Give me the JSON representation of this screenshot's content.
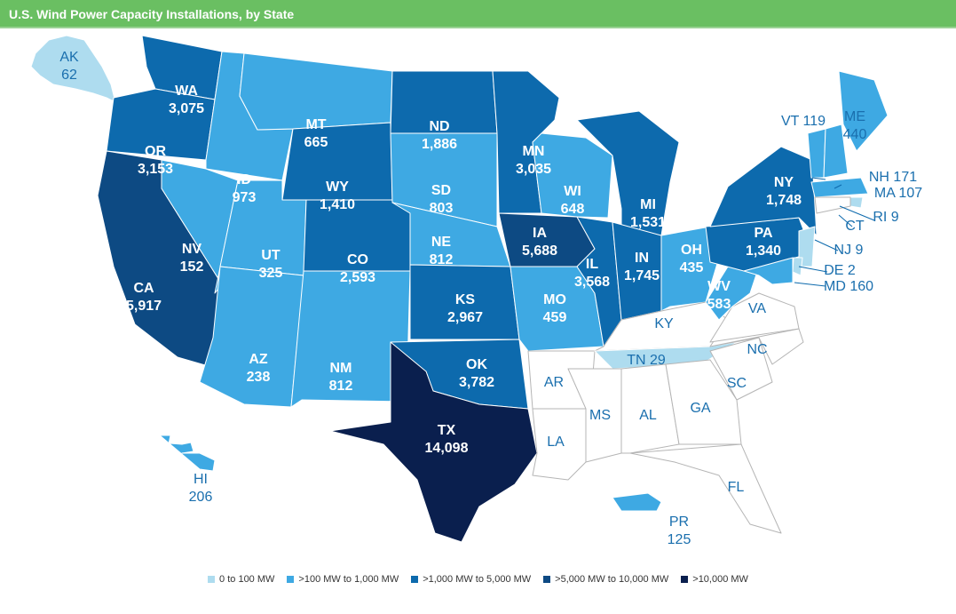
{
  "header": {
    "title": "U.S. Wind Power Capacity Installations, by State"
  },
  "colors": {
    "tier0": "#aedcef",
    "tier1": "#3ea9e3",
    "tier2": "#0d6aad",
    "tier3": "#0d4a83",
    "tier4": "#0a1f4e",
    "none": "#ffffff",
    "header": "#6abf62"
  },
  "legend": [
    {
      "label": "0 to 100 MW",
      "tier": "tier0"
    },
    {
      "label": ">100 MW to 1,000 MW",
      "tier": "tier1"
    },
    {
      "label": ">1,000 MW to 5,000 MW",
      "tier": "tier2"
    },
    {
      "label": ">5,000 MW to 10,000 MW",
      "tier": "tier3"
    },
    {
      "label": ">10,000 MW",
      "tier": "tier4"
    }
  ],
  "states": [
    {
      "code": "AK",
      "value": "62",
      "tier": "tier0"
    },
    {
      "code": "WA",
      "value": "3,075",
      "tier": "tier2"
    },
    {
      "code": "OR",
      "value": "3,153",
      "tier": "tier2"
    },
    {
      "code": "CA",
      "value": "5,917",
      "tier": "tier3"
    },
    {
      "code": "ID",
      "value": "973",
      "tier": "tier1"
    },
    {
      "code": "NV",
      "value": "152",
      "tier": "tier1"
    },
    {
      "code": "MT",
      "value": "665",
      "tier": "tier1"
    },
    {
      "code": "WY",
      "value": "1,410",
      "tier": "tier2"
    },
    {
      "code": "UT",
      "value": "325",
      "tier": "tier1"
    },
    {
      "code": "AZ",
      "value": "238",
      "tier": "tier1"
    },
    {
      "code": "CO",
      "value": "2,593",
      "tier": "tier2"
    },
    {
      "code": "NM",
      "value": "812",
      "tier": "tier1"
    },
    {
      "code": "ND",
      "value": "1,886",
      "tier": "tier2"
    },
    {
      "code": "SD",
      "value": "803",
      "tier": "tier1"
    },
    {
      "code": "NE",
      "value": "812",
      "tier": "tier1"
    },
    {
      "code": "KS",
      "value": "2,967",
      "tier": "tier2"
    },
    {
      "code": "OK",
      "value": "3,782",
      "tier": "tier2"
    },
    {
      "code": "TX",
      "value": "14,098",
      "tier": "tier4"
    },
    {
      "code": "MN",
      "value": "3,035",
      "tier": "tier2"
    },
    {
      "code": "IA",
      "value": "5,688",
      "tier": "tier3"
    },
    {
      "code": "MO",
      "value": "459",
      "tier": "tier1"
    },
    {
      "code": "AR",
      "value": "",
      "tier": "none"
    },
    {
      "code": "LA",
      "value": "",
      "tier": "none"
    },
    {
      "code": "WI",
      "value": "648",
      "tier": "tier1"
    },
    {
      "code": "IL",
      "value": "3,568",
      "tier": "tier2"
    },
    {
      "code": "MI",
      "value": "1,531",
      "tier": "tier2"
    },
    {
      "code": "IN",
      "value": "1,745",
      "tier": "tier2"
    },
    {
      "code": "OH",
      "value": "435",
      "tier": "tier1"
    },
    {
      "code": "KY",
      "value": "",
      "tier": "none"
    },
    {
      "code": "TN",
      "value": "29",
      "tier": "tier0"
    },
    {
      "code": "MS",
      "value": "",
      "tier": "none"
    },
    {
      "code": "AL",
      "value": "",
      "tier": "none"
    },
    {
      "code": "GA",
      "value": "",
      "tier": "none"
    },
    {
      "code": "FL",
      "value": "",
      "tier": "none"
    },
    {
      "code": "SC",
      "value": "",
      "tier": "none"
    },
    {
      "code": "NC",
      "value": "",
      "tier": "none"
    },
    {
      "code": "VA",
      "value": "",
      "tier": "none"
    },
    {
      "code": "WV",
      "value": "583",
      "tier": "tier1"
    },
    {
      "code": "PA",
      "value": "1,340",
      "tier": "tier2"
    },
    {
      "code": "NY",
      "value": "1,748",
      "tier": "tier2"
    },
    {
      "code": "VT",
      "value": "119",
      "tier": "tier1"
    },
    {
      "code": "NH",
      "value": "171",
      "tier": "tier1"
    },
    {
      "code": "ME",
      "value": "440",
      "tier": "tier1"
    },
    {
      "code": "MA",
      "value": "107",
      "tier": "tier1"
    },
    {
      "code": "RI",
      "value": "9",
      "tier": "tier0"
    },
    {
      "code": "CT",
      "value": "",
      "tier": "none"
    },
    {
      "code": "NJ",
      "value": "9",
      "tier": "tier0"
    },
    {
      "code": "DE",
      "value": "2",
      "tier": "tier0"
    },
    {
      "code": "MD",
      "value": "160",
      "tier": "tier1"
    },
    {
      "code": "HI",
      "value": "206",
      "tier": "tier1"
    },
    {
      "code": "PR",
      "value": "125",
      "tier": "tier1"
    }
  ]
}
